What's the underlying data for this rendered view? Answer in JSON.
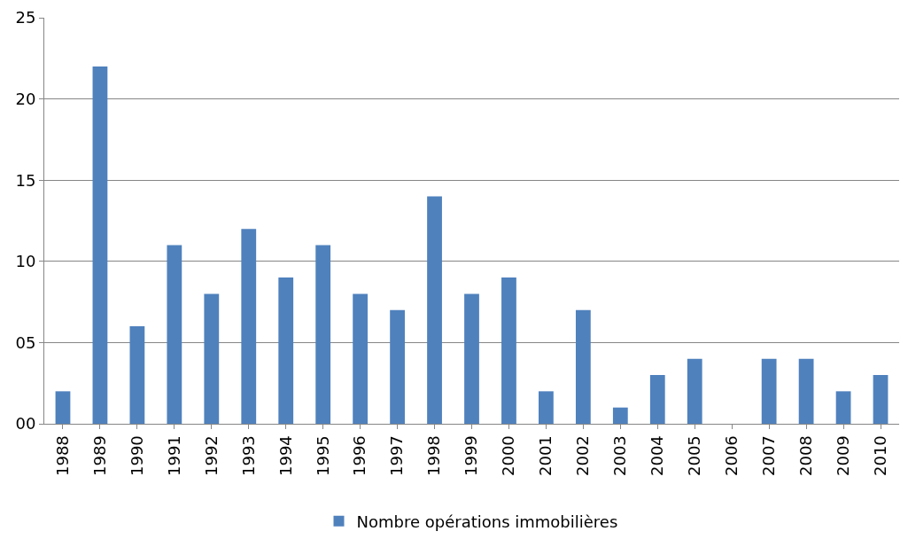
{
  "chart_data": {
    "type": "bar",
    "categories": [
      "1988",
      "1989",
      "1990",
      "1991",
      "1992",
      "1993",
      "1994",
      "1995",
      "1996",
      "1997",
      "1998",
      "1999",
      "2000",
      "2001",
      "2002",
      "2003",
      "2004",
      "2005",
      "2006",
      "2007",
      "2008",
      "2009",
      "2010"
    ],
    "series": [
      {
        "name": "Nombre opérations immobilières",
        "color": "#4f81bd",
        "values": [
          2,
          22,
          6,
          11,
          8,
          12,
          9,
          11,
          8,
          7,
          14,
          8,
          9,
          2,
          7,
          1,
          3,
          4,
          0,
          4,
          4,
          2,
          3
        ]
      }
    ],
    "ylim": [
      0,
      25
    ],
    "yticks": [
      {
        "value": 0,
        "label": "00"
      },
      {
        "value": 5,
        "label": "05"
      },
      {
        "value": 10,
        "label": "10"
      },
      {
        "value": 15,
        "label": "15"
      },
      {
        "value": 20,
        "label": "20"
      },
      {
        "value": 25,
        "label": "25"
      }
    ],
    "grid": "y",
    "legend": "bottom"
  }
}
